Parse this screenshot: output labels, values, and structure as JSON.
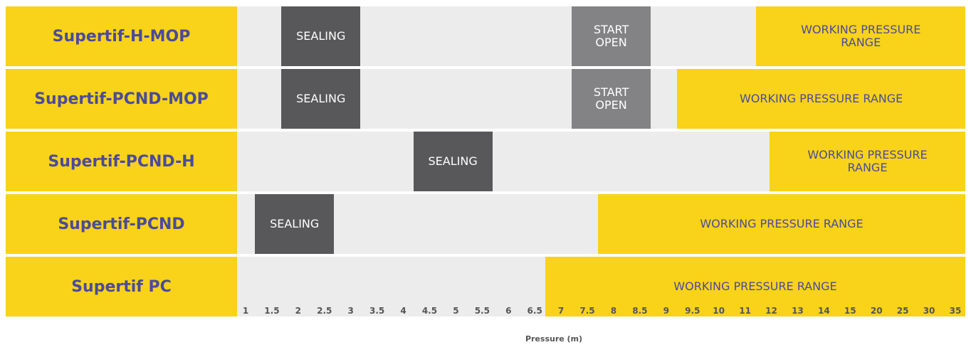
{
  "chart_data": {
    "type": "table",
    "xlabel": "Pressure (m)",
    "x_ticks": [
      "1",
      "1.5",
      "2",
      "2.5",
      "3",
      "3.5",
      "4",
      "4.5",
      "5",
      "5.5",
      "6",
      "6.5",
      "7",
      "7.5",
      "8",
      "8.5",
      "9",
      "9.5",
      "10",
      "11",
      "12",
      "13",
      "14",
      "15",
      "20",
      "25",
      "30",
      "35"
    ],
    "rows": [
      {
        "label": "Supertif-H-MOP",
        "segments": [
          {
            "type": "sealing",
            "text": "SEALING",
            "start": 2,
            "end": 3.5
          },
          {
            "type": "start-open",
            "text": "START\nOPEN",
            "start": 7.5,
            "end": 9
          },
          {
            "type": "working",
            "text": "WORKING PRESSURE\nRANGE",
            "start": 12,
            "end": 35
          }
        ]
      },
      {
        "label": "Supertif-PCND-MOP",
        "segments": [
          {
            "type": "sealing",
            "text": "SEALING",
            "start": 2,
            "end": 3.5
          },
          {
            "type": "start-open",
            "text": "START\nOPEN",
            "start": 7.5,
            "end": 9
          },
          {
            "type": "working",
            "text": "WORKING PRESSURE RANGE",
            "start": 9.5,
            "end": 35
          }
        ]
      },
      {
        "label": "Supertif-PCND-H",
        "segments": [
          {
            "type": "sealing",
            "text": "SEALING",
            "start": 4.5,
            "end": 6
          },
          {
            "type": "working",
            "text": "WORKING PRESSURE\nRANGE",
            "start": 12.5,
            "end": 35
          }
        ]
      },
      {
        "label": "Supertif-PCND",
        "segments": [
          {
            "type": "sealing",
            "text": "SEALING",
            "start": 1.5,
            "end": 3
          },
          {
            "type": "working",
            "text": "WORKING PRESSURE RANGE",
            "start": 8,
            "end": 35
          }
        ]
      },
      {
        "label": "Supertif PC",
        "segments": [
          {
            "type": "working",
            "text": "WORKING PRESSURE RANGE",
            "start": 7,
            "end": 35
          }
        ]
      }
    ]
  },
  "colors": {
    "label_background": "#f9d21a",
    "label_text": "#4a4b9b",
    "track_background": "#ececec",
    "sealing": "#58585a",
    "start_open": "#838385",
    "working": "#f9d21a"
  }
}
